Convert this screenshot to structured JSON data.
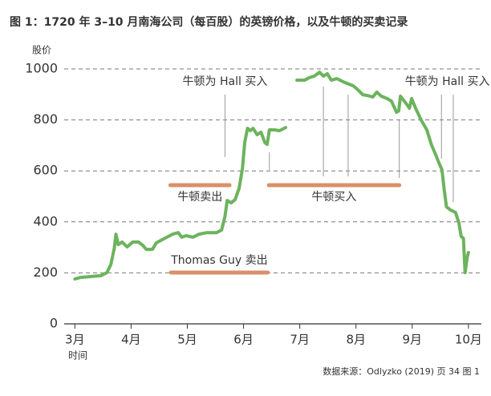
{
  "chart_data": {
    "type": "line",
    "title": "图 1：1720 年 3–10 月南海公司（每百股）的英镑价格，以及牛顿的买卖记录",
    "ylabel": "股价",
    "xlabel": "时间",
    "source": "数据来源：Odlyzko (2019) 页 34 图 1",
    "x": [
      3.0,
      3.1,
      3.24,
      3.46,
      3.57,
      3.64,
      3.7,
      3.73,
      3.77,
      3.84,
      3.93,
      4.03,
      4.13,
      4.21,
      4.27,
      4.38,
      4.45,
      4.6,
      4.74,
      4.84,
      4.9,
      4.98,
      5.1,
      5.21,
      5.35,
      5.52,
      5.61,
      5.67,
      5.71,
      5.78,
      5.85,
      5.92,
      5.98,
      6.02,
      6.07,
      6.12,
      6.17,
      6.24,
      6.31,
      6.38,
      6.42,
      6.46,
      6.55,
      6.64,
      6.75,
      6.85,
      6.95,
      7.09,
      7.16,
      7.26,
      7.35,
      7.42,
      7.49,
      7.56,
      7.66,
      7.8,
      7.95,
      8.02,
      8.12,
      8.2,
      8.3,
      8.37,
      8.45,
      8.55,
      8.63,
      8.72,
      8.76,
      8.79,
      8.87,
      8.95,
      8.99,
      9.06,
      9.16,
      9.26,
      9.34,
      9.4,
      9.47,
      9.53,
      9.57,
      9.61,
      9.68,
      9.77,
      9.83,
      9.87,
      9.91,
      9.94,
      9.98,
      10.0
    ],
    "series": [
      {
        "name": "股价",
        "color": "#6cb35d",
        "values": [
          176,
          182,
          185,
          189,
          201,
          233,
          296,
          352,
          311,
          321,
          302,
          321,
          321,
          308,
          292,
          292,
          318,
          336,
          352,
          358,
          340,
          346,
          340,
          352,
          358,
          358,
          368,
          421,
          484,
          475,
          487,
          531,
          610,
          711,
          767,
          758,
          767,
          742,
          752,
          711,
          704,
          761,
          761,
          758,
          770,
          null,
          956,
          956,
          965,
          972,
          987,
          972,
          981,
          956,
          962,
          947,
          934,
          921,
          899,
          896,
          890,
          909,
          893,
          884,
          874,
          830,
          836,
          893,
          871,
          846,
          884,
          846,
          799,
          761,
          704,
          673,
          635,
          604,
          525,
          459,
          447,
          437,
          396,
          343,
          336,
          201,
          264,
          280
        ]
      }
    ],
    "xlim": [
      2.81,
      10.23
    ],
    "ylim": [
      0,
      1000
    ],
    "yticks": [
      0,
      200,
      400,
      600,
      800,
      1000
    ],
    "xticks": [
      {
        "value": 3,
        "label": "3月"
      },
      {
        "value": 4,
        "label": "4月"
      },
      {
        "value": 5,
        "label": "5月"
      },
      {
        "value": 6,
        "label": "6月"
      },
      {
        "value": 7,
        "label": "7月"
      },
      {
        "value": 8,
        "label": "8月"
      },
      {
        "value": 9,
        "label": "9月"
      },
      {
        "value": 10,
        "label": "10月"
      }
    ],
    "grid": true,
    "spans": [
      {
        "label": "牛顿卖出",
        "x": [
          4.7,
          5.75
        ],
        "color": "#d9906a"
      },
      {
        "label": "牛顿买入",
        "x": [
          6.45,
          8.77
        ],
        "color": "#d9906a"
      },
      {
        "label": "Thomas Guy 卖出",
        "x": [
          4.71,
          6.43
        ],
        "color": "#d9906a"
      }
    ],
    "notes": [
      {
        "text": "牛顿为 Hall 买入",
        "x": [
          5.67
        ]
      },
      {
        "text": "牛顿为 Hall 买入",
        "x": [
          9.52,
          9.73
        ]
      }
    ],
    "markers": [
      6.46,
      7.42,
      7.86,
      8.77
    ]
  }
}
